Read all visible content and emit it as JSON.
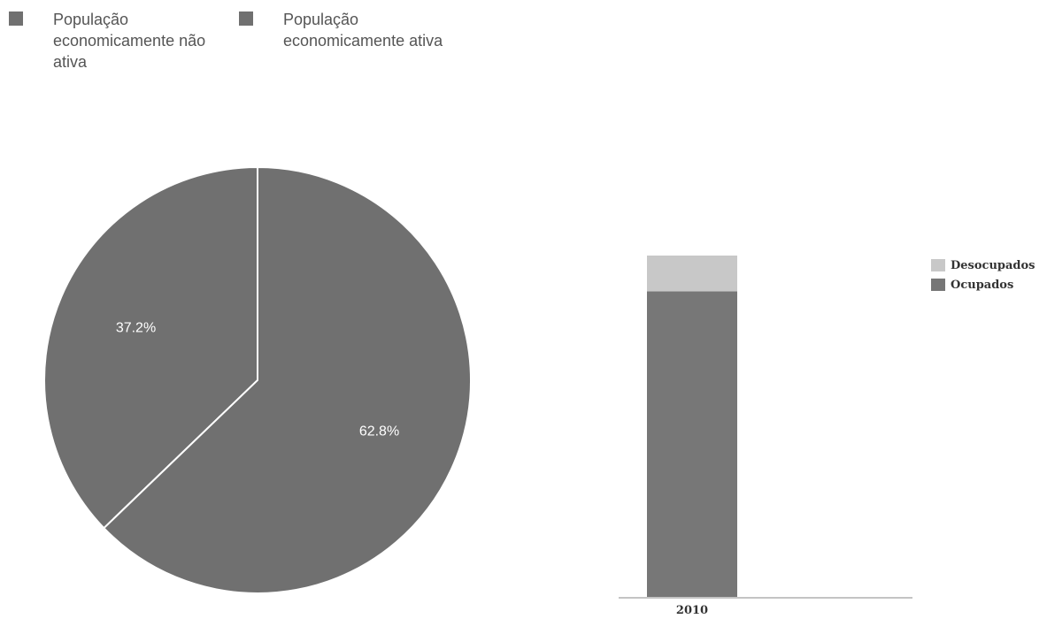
{
  "chart_data": [
    {
      "type": "pie",
      "slices": [
        {
          "label": "População economicamente não ativa",
          "value": 37.2,
          "value_label": "37.2%",
          "color": "#707070"
        },
        {
          "label": "População economicamente ativa",
          "value": 62.8,
          "value_label": "62.8%",
          "color": "#707070"
        }
      ],
      "legend_position": "top-left"
    },
    {
      "type": "bar",
      "stacked": true,
      "categories": [
        "2010"
      ],
      "series": [
        {
          "name": "Ocupados",
          "values": [
            89.5
          ],
          "color": "#777777"
        },
        {
          "name": "Desocupados",
          "values": [
            10.5
          ],
          "color": "#c8c8c8"
        }
      ],
      "legend_position": "right",
      "legend_order": [
        "Desocupados",
        "Ocupados"
      ]
    }
  ]
}
